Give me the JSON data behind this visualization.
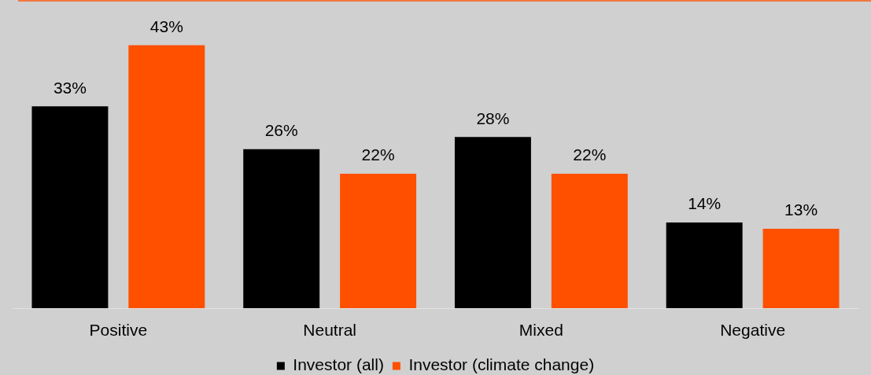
{
  "chart_data": {
    "type": "bar",
    "categories": [
      "Positive",
      "Neutral",
      "Mixed",
      "Negative"
    ],
    "series": [
      {
        "name": "Investor (all)",
        "color": "#000000",
        "values": [
          33,
          26,
          28,
          14
        ],
        "value_labels": [
          "33%",
          "26%",
          "28%",
          "14%"
        ]
      },
      {
        "name": "Investor (climate change)",
        "color": "#ff5000",
        "values": [
          43,
          22,
          22,
          13
        ],
        "value_labels": [
          "43%",
          "22%",
          "22%",
          "13%"
        ]
      }
    ],
    "legend": "bottom",
    "tick_labels": "x",
    "grid": false
  }
}
